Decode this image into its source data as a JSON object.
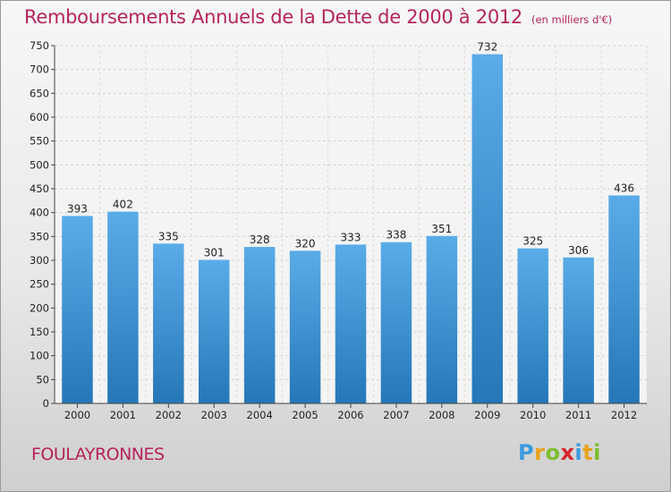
{
  "header": {
    "title": "Remboursements Annuels de la Dette de 2000 à 2012",
    "unit": "(en milliers d'€)"
  },
  "footer": {
    "commune": "FOULAYRONNES",
    "logo_letters": [
      "P",
      "r",
      "o",
      "x",
      "i",
      "t",
      "i"
    ],
    "logo_colors": [
      "#3a9be0",
      "#e8a21b",
      "#7cbd2e",
      "#d8262d",
      "#3a9be0",
      "#e8a21b",
      "#7cbd2e"
    ]
  },
  "colors": {
    "bar_top": "#5aace8",
    "bar_bottom": "#2577b8",
    "title": "#b5245a",
    "text": "#222222"
  },
  "chart_data": {
    "type": "bar",
    "title": "Remboursements Annuels de la Dette de 2000 à 2012",
    "categories": [
      "2000",
      "2001",
      "2002",
      "2003",
      "2004",
      "2005",
      "2006",
      "2007",
      "2008",
      "2009",
      "2010",
      "2011",
      "2012"
    ],
    "values": [
      393,
      402,
      335,
      301,
      328,
      320,
      333,
      338,
      351,
      732,
      325,
      306,
      436
    ],
    "ylim": [
      0,
      750
    ],
    "yticks": [
      0,
      50,
      100,
      150,
      200,
      250,
      300,
      350,
      400,
      450,
      500,
      550,
      600,
      650,
      700,
      750
    ],
    "grid": true,
    "legend": "none"
  }
}
